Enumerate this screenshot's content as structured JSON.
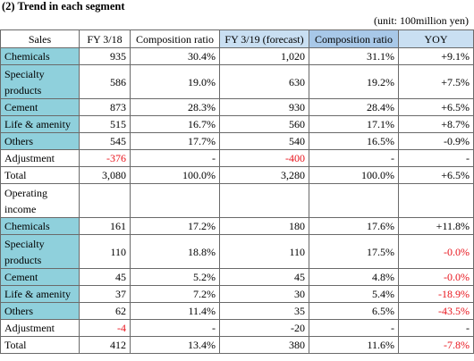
{
  "header": {
    "title": "(2) Trend in each segment",
    "unit": "(unit: 100million yen)"
  },
  "table": {
    "columns": [
      "Sales",
      "FY 3/18",
      "Composition ratio",
      "FY 3/19 (forecast)",
      "Composition ratio",
      "YOY"
    ],
    "rows": [
      [
        "Chemicals",
        "935",
        "30.4%",
        "1,020",
        "31.1%",
        "+9.1%"
      ],
      [
        "Specialty products",
        "586",
        "19.0%",
        "630",
        "19.2%",
        "+7.5%"
      ],
      [
        "Cement",
        "873",
        "28.3%",
        "930",
        "28.4%",
        "+6.5%"
      ],
      [
        "Life & amenity",
        "515",
        "16.7%",
        "560",
        "17.1%",
        "+8.7%"
      ],
      [
        "Others",
        "545",
        "17.7%",
        "540",
        "16.5%",
        "-0.9%"
      ],
      [
        "Adjustment",
        "-376",
        "-",
        "-400",
        "-",
        "-"
      ],
      [
        "Total",
        "3,080",
        "100.0%",
        "3,280",
        "100.0%",
        "+6.5%"
      ],
      [
        "Operating income"
      ],
      [
        "Chemicals",
        "161",
        "17.2%",
        "180",
        "17.6%",
        "+11.8%"
      ],
      [
        "Specialty products",
        "110",
        "18.8%",
        "110",
        "17.5%",
        "-0.0%"
      ],
      [
        "Cement",
        "45",
        "5.2%",
        "45",
        "4.8%",
        "-0.0%"
      ],
      [
        "Life & amenity",
        "37",
        "7.2%",
        "30",
        "5.4%",
        "-18.9%"
      ],
      [
        "Others",
        "62",
        "11.4%",
        "35",
        "6.5%",
        "-43.5%"
      ],
      [
        "Adjustment",
        "-4",
        "-",
        "-20",
        "-",
        "-"
      ],
      [
        "Total",
        "412",
        "13.4%",
        "380",
        "11.6%",
        "-7.8%"
      ]
    ]
  }
}
